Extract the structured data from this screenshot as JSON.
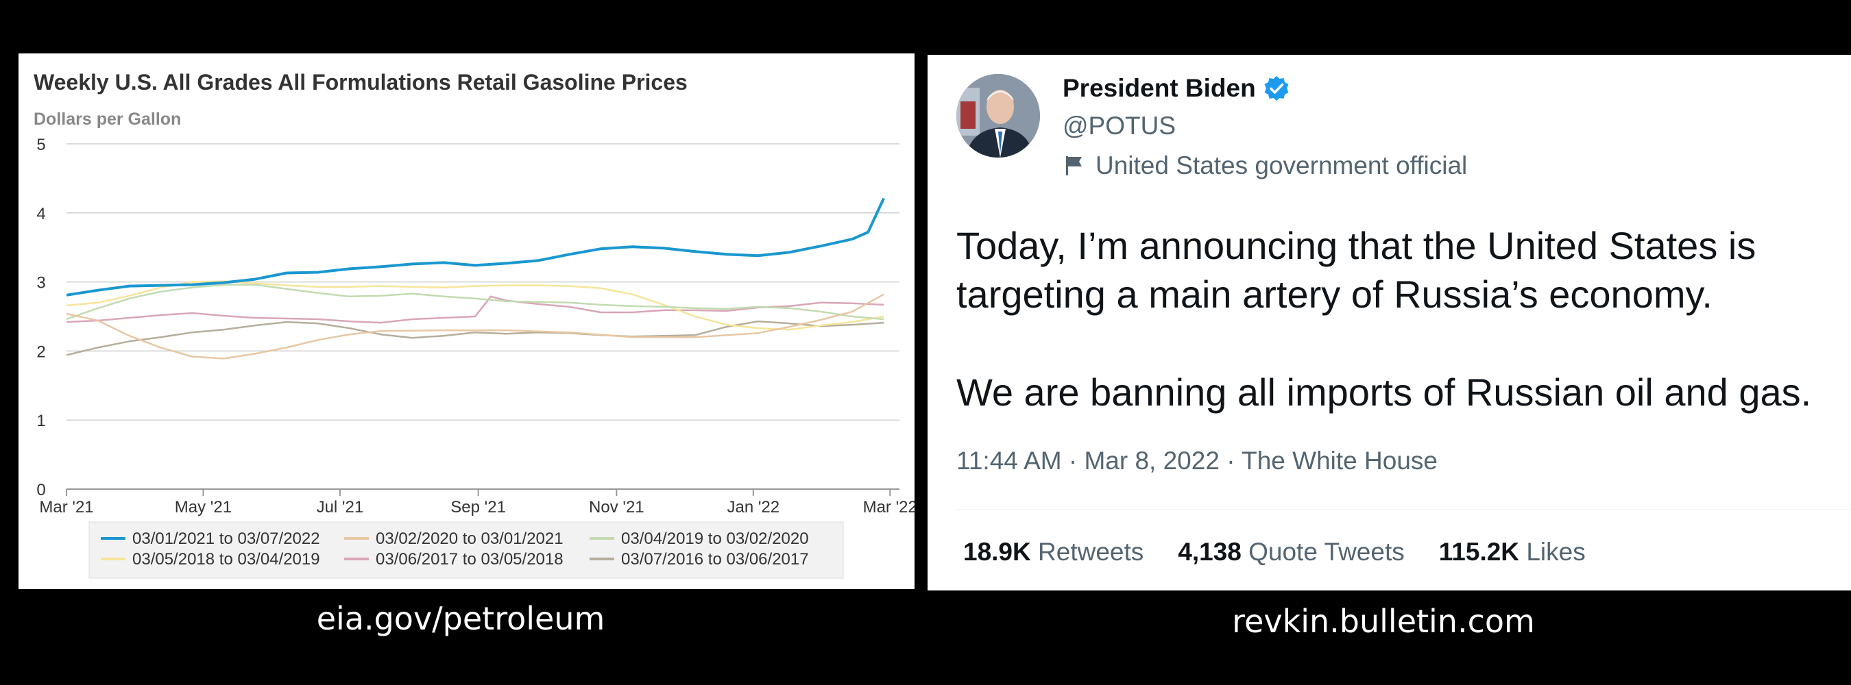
{
  "chart_data": {
    "type": "line",
    "title": "Weekly U.S. All Grades All Formulations Retail Gasoline Prices",
    "subtitle": "Dollars per Gallon",
    "ylim": [
      0,
      5
    ],
    "y_ticks": [
      "0",
      "1",
      "2",
      "3",
      "4",
      "5"
    ],
    "xlim": [
      0,
      53
    ],
    "x_ticks": [
      {
        "label": "Mar '21",
        "x": 0
      },
      {
        "label": "May '21",
        "x": 8.7
      },
      {
        "label": "Jul '21",
        "x": 17.4
      },
      {
        "label": "Sep '21",
        "x": 26.2
      },
      {
        "label": "Nov '21",
        "x": 35
      },
      {
        "label": "Jan '22",
        "x": 43.7
      },
      {
        "label": "Mar '22",
        "x": 52.4
      }
    ],
    "grid": true,
    "legend_position": "bottom",
    "series": [
      {
        "name": "03/01/2021 to 03/07/2022",
        "color": "#1a97d0",
        "width": 4,
        "points": [
          [
            0,
            2.81
          ],
          [
            2,
            2.88
          ],
          [
            4,
            2.94
          ],
          [
            6,
            2.95
          ],
          [
            8,
            2.96
          ],
          [
            10,
            2.99
          ],
          [
            12,
            3.04
          ],
          [
            14,
            3.13
          ],
          [
            16,
            3.14
          ],
          [
            18,
            3.19
          ],
          [
            20,
            3.22
          ],
          [
            22,
            3.26
          ],
          [
            24,
            3.28
          ],
          [
            26,
            3.24
          ],
          [
            28,
            3.27
          ],
          [
            30,
            3.31
          ],
          [
            32,
            3.4
          ],
          [
            34,
            3.48
          ],
          [
            36,
            3.51
          ],
          [
            38,
            3.49
          ],
          [
            40,
            3.44
          ],
          [
            42,
            3.4
          ],
          [
            44,
            3.38
          ],
          [
            46,
            3.43
          ],
          [
            48,
            3.52
          ],
          [
            50,
            3.62
          ],
          [
            51,
            3.72
          ],
          [
            52,
            4.21
          ]
        ]
      },
      {
        "name": "03/02/2020 to 03/01/2021",
        "color": "#e8c7a3",
        "width": 2.5,
        "points": [
          [
            0,
            2.54
          ],
          [
            2,
            2.44
          ],
          [
            4,
            2.22
          ],
          [
            6,
            2.05
          ],
          [
            8,
            1.92
          ],
          [
            10,
            1.89
          ],
          [
            12,
            1.96
          ],
          [
            14,
            2.05
          ],
          [
            16,
            2.16
          ],
          [
            18,
            2.24
          ],
          [
            20,
            2.29
          ],
          [
            24,
            2.3
          ],
          [
            28,
            2.3
          ],
          [
            32,
            2.27
          ],
          [
            36,
            2.2
          ],
          [
            40,
            2.2
          ],
          [
            44,
            2.26
          ],
          [
            46,
            2.35
          ],
          [
            48,
            2.45
          ],
          [
            50,
            2.57
          ],
          [
            52,
            2.82
          ]
        ]
      },
      {
        "name": "03/04/2019 to 03/02/2020",
        "color": "#c2dbb0",
        "width": 2.5,
        "points": [
          [
            0,
            2.46
          ],
          [
            2,
            2.62
          ],
          [
            4,
            2.76
          ],
          [
            6,
            2.86
          ],
          [
            8,
            2.92
          ],
          [
            10,
            2.96
          ],
          [
            12,
            2.96
          ],
          [
            14,
            2.9
          ],
          [
            16,
            2.84
          ],
          [
            18,
            2.79
          ],
          [
            20,
            2.8
          ],
          [
            22,
            2.83
          ],
          [
            24,
            2.79
          ],
          [
            26,
            2.76
          ],
          [
            28,
            2.72
          ],
          [
            30,
            2.71
          ],
          [
            32,
            2.7
          ],
          [
            34,
            2.67
          ],
          [
            36,
            2.65
          ],
          [
            38,
            2.64
          ],
          [
            40,
            2.62
          ],
          [
            42,
            2.61
          ],
          [
            44,
            2.64
          ],
          [
            46,
            2.62
          ],
          [
            48,
            2.57
          ],
          [
            50,
            2.5
          ],
          [
            52,
            2.46
          ]
        ]
      },
      {
        "name": "03/05/2018 to 03/04/2019",
        "color": "#f6e59a",
        "width": 2.5,
        "points": [
          [
            0,
            2.66
          ],
          [
            2,
            2.7
          ],
          [
            4,
            2.8
          ],
          [
            6,
            2.92
          ],
          [
            8,
            3.0
          ],
          [
            10,
            3.01
          ],
          [
            12,
            2.98
          ],
          [
            14,
            2.95
          ],
          [
            16,
            2.93
          ],
          [
            18,
            2.93
          ],
          [
            20,
            2.94
          ],
          [
            22,
            2.93
          ],
          [
            24,
            2.92
          ],
          [
            26,
            2.94
          ],
          [
            28,
            2.95
          ],
          [
            30,
            2.95
          ],
          [
            32,
            2.94
          ],
          [
            34,
            2.91
          ],
          [
            36,
            2.82
          ],
          [
            38,
            2.67
          ],
          [
            40,
            2.5
          ],
          [
            42,
            2.38
          ],
          [
            44,
            2.33
          ],
          [
            46,
            2.31
          ],
          [
            48,
            2.37
          ],
          [
            50,
            2.42
          ],
          [
            52,
            2.5
          ]
        ]
      },
      {
        "name": "03/06/2017 to 03/05/2018",
        "color": "#d9a6b7",
        "width": 2.5,
        "points": [
          [
            0,
            2.42
          ],
          [
            2,
            2.44
          ],
          [
            4,
            2.48
          ],
          [
            6,
            2.52
          ],
          [
            8,
            2.55
          ],
          [
            10,
            2.51
          ],
          [
            12,
            2.48
          ],
          [
            14,
            2.47
          ],
          [
            16,
            2.46
          ],
          [
            18,
            2.43
          ],
          [
            20,
            2.41
          ],
          [
            22,
            2.46
          ],
          [
            24,
            2.48
          ],
          [
            26,
            2.5
          ],
          [
            27,
            2.79
          ],
          [
            28,
            2.73
          ],
          [
            30,
            2.68
          ],
          [
            32,
            2.64
          ],
          [
            34,
            2.56
          ],
          [
            36,
            2.56
          ],
          [
            38,
            2.59
          ],
          [
            40,
            2.59
          ],
          [
            42,
            2.58
          ],
          [
            44,
            2.63
          ],
          [
            46,
            2.65
          ],
          [
            48,
            2.7
          ],
          [
            50,
            2.69
          ],
          [
            52,
            2.67
          ]
        ]
      },
      {
        "name": "03/07/2016 to 03/06/2017",
        "color": "#b5ae9c",
        "width": 2.5,
        "points": [
          [
            0,
            1.94
          ],
          [
            2,
            2.05
          ],
          [
            4,
            2.14
          ],
          [
            6,
            2.2
          ],
          [
            8,
            2.27
          ],
          [
            10,
            2.31
          ],
          [
            12,
            2.37
          ],
          [
            14,
            2.42
          ],
          [
            16,
            2.4
          ],
          [
            18,
            2.33
          ],
          [
            20,
            2.24
          ],
          [
            22,
            2.19
          ],
          [
            24,
            2.22
          ],
          [
            26,
            2.27
          ],
          [
            28,
            2.25
          ],
          [
            30,
            2.27
          ],
          [
            32,
            2.26
          ],
          [
            34,
            2.23
          ],
          [
            36,
            2.21
          ],
          [
            38,
            2.22
          ],
          [
            40,
            2.23
          ],
          [
            42,
            2.35
          ],
          [
            44,
            2.43
          ],
          [
            46,
            2.4
          ],
          [
            48,
            2.36
          ],
          [
            50,
            2.38
          ],
          [
            52,
            2.41
          ]
        ]
      }
    ]
  },
  "tweet": {
    "name": "President Biden",
    "handle": "@POTUS",
    "affiliation": "United States government official",
    "text_line1": "Today, I’m announcing that the United States is targeting a main artery of Russia’s economy.",
    "text_line2": "We are banning all imports of Russian oil and gas.",
    "meta": "11:44 AM · Mar 8, 2022 · The White House",
    "retweets_count": "18.9K",
    "retweets_label": "Retweets",
    "quotes_count": "4,138",
    "quotes_label": "Quote Tweets",
    "likes_count": "115.2K",
    "likes_label": "Likes",
    "verified_color": "#1d9bf0"
  },
  "captions": {
    "left": "eia.gov/petroleum",
    "right": "revkin.bulletin.com"
  }
}
